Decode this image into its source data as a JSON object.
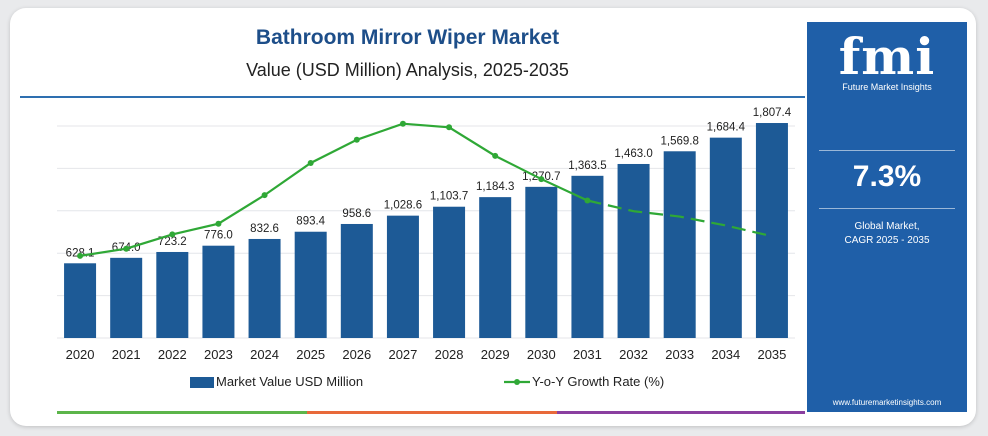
{
  "header": {
    "title": "Bathroom Mirror Wiper Market",
    "subtitle": "Value (USD Million) Analysis, 2025-2035"
  },
  "sidebar": {
    "logo_text": "fmi",
    "logo_subtext": "Future Market Insights",
    "cagr_value": "7.3%",
    "cagr_label_line1": "Global Market,",
    "cagr_label_line2": "CAGR 2025 - 2035",
    "url": "www.futuremarketinsights.com"
  },
  "colors": {
    "bar": "#1d5a96",
    "line": "#2fa836",
    "title": "#1d4e89",
    "side_panel": "#1f5fa8",
    "strip_green": "#5cb54a",
    "strip_orange": "#e8693a",
    "strip_purple": "#8a3fa0"
  },
  "chart_data": {
    "type": "bar",
    "title": "Bathroom Mirror Wiper Market",
    "subtitle": "Value (USD Million) Analysis, 2025-2035",
    "categories": [
      "2020",
      "2021",
      "2022",
      "2023",
      "2024",
      "2025",
      "2026",
      "2027",
      "2028",
      "2029",
      "2030",
      "2031",
      "2032",
      "2033",
      "2034",
      "2035"
    ],
    "series": [
      {
        "name": "Market Value USD Million",
        "type": "bar",
        "values": [
          628.1,
          674.0,
          723.2,
          776.0,
          832.6,
          893.4,
          958.6,
          1028.6,
          1103.7,
          1184.3,
          1270.7,
          1363.5,
          1463.0,
          1569.8,
          1684.4,
          1807.4
        ],
        "labels": [
          "628.1",
          "674.0",
          "723.2",
          "776.0",
          "832.6",
          "893.4",
          "958.6",
          "1,028.6",
          "1,103.7",
          "1,184.3",
          "1,270.7",
          "1,363.5",
          "1,463.0",
          "1,569.8",
          "1,684.4",
          "1,807.4"
        ]
      },
      {
        "name": "Y-o-Y Growth Rate (%)",
        "type": "line",
        "values": [
          4.6,
          5.0,
          5.8,
          6.4,
          8.0,
          9.8,
          11.1,
          12.0,
          11.8,
          10.2,
          8.9,
          7.7,
          7.1,
          6.8,
          6.3,
          5.7
        ],
        "forecast_dashed_from_index": 11
      }
    ],
    "ylim": [
      0,
      1900
    ],
    "y2lim": [
      0,
      14
    ],
    "grid": true,
    "legend": "bottom"
  }
}
